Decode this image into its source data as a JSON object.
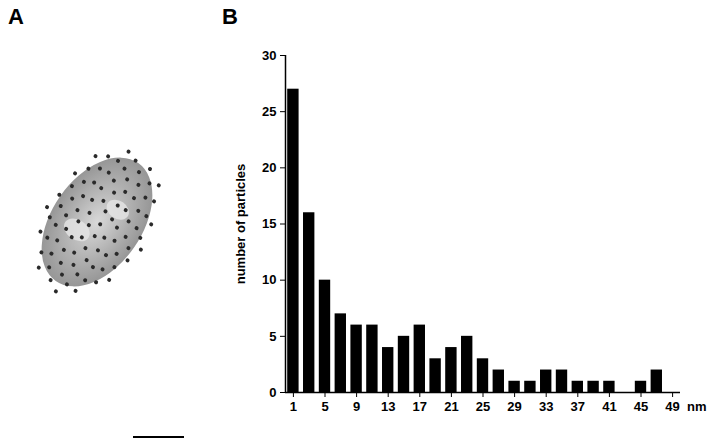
{
  "panel_labels": [
    "A",
    "B"
  ],
  "chart_data": {
    "type": "bar",
    "x": [
      1,
      3,
      5,
      7,
      9,
      11,
      13,
      15,
      17,
      19,
      21,
      23,
      25,
      27,
      29,
      31,
      33,
      35,
      37,
      39,
      41,
      43,
      45,
      47
    ],
    "values": [
      27,
      16,
      10,
      7,
      6,
      6,
      4,
      5,
      6,
      3,
      4,
      5,
      3,
      2,
      1,
      1,
      2,
      2,
      1,
      1,
      1,
      0,
      1,
      2
    ],
    "color": "#000000",
    "x_label": "nm",
    "y_label": "number of particles",
    "xlim": [
      0,
      50
    ],
    "xticks": [
      1,
      5,
      9,
      13,
      17,
      21,
      25,
      29,
      33,
      37,
      41,
      45,
      49
    ],
    "ylim": [
      0,
      30
    ],
    "yticks": [
      0,
      5,
      10,
      15,
      20,
      25,
      30
    ]
  }
}
